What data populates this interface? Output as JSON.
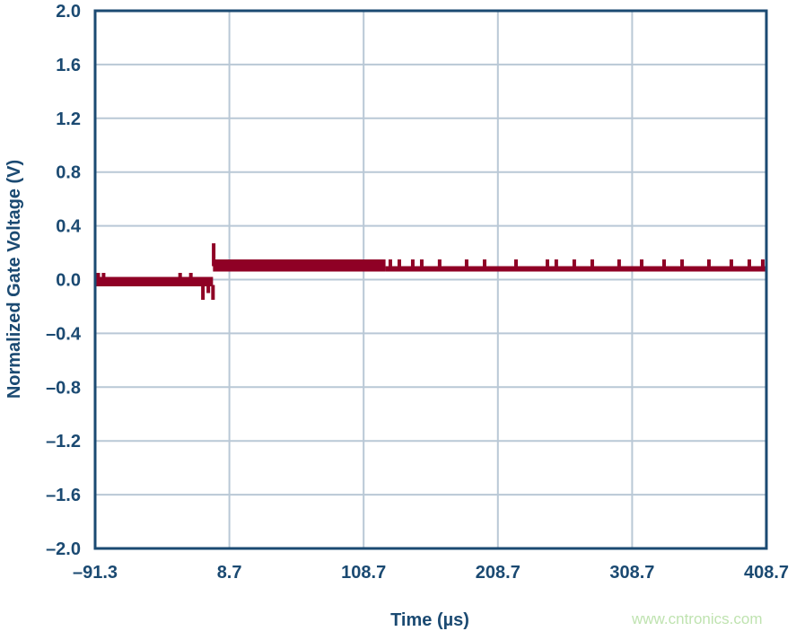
{
  "chart_data": {
    "type": "line",
    "title": "",
    "xlabel": "Time (µs)",
    "ylabel": "Normalized Gate Voltage (V)",
    "xlim": [
      -91.3,
      408.7
    ],
    "ylim": [
      -2.0,
      2.0
    ],
    "xticks": [
      -91.3,
      8.7,
      108.7,
      208.7,
      308.7,
      408.7
    ],
    "xtick_labels": [
      "–91.3",
      "8.7",
      "108.7",
      "208.7",
      "308.7",
      "408.7"
    ],
    "yticks": [
      2.0,
      1.6,
      1.2,
      0.8,
      0.4,
      0.0,
      -0.4,
      -0.8,
      -1.2,
      -1.6,
      -2.0
    ],
    "ytick_labels": [
      "2.0",
      "1.6",
      "1.2",
      "0.8",
      "0.4",
      "0.0",
      "–0.4",
      "–0.8",
      "–1.2",
      "–1.6",
      "–2.0"
    ],
    "grid": true,
    "series_color": "#8f0025",
    "envelope": [
      {
        "t0": -91.3,
        "t1": -3.5,
        "min": -0.05,
        "max": 0.02
      },
      {
        "t0": -3.5,
        "t1": 125,
        "min": 0.06,
        "max": 0.15
      },
      {
        "t0": 125,
        "t1": 408.7,
        "min": 0.06,
        "max": 0.1
      }
    ],
    "spikes": [
      {
        "t": -89,
        "v": 0.05
      },
      {
        "t": -85,
        "v": 0.05
      },
      {
        "t": -28,
        "v": 0.05
      },
      {
        "t": -20,
        "v": 0.05
      },
      {
        "t": -11,
        "v": -0.15
      },
      {
        "t": -7,
        "v": -0.1
      },
      {
        "t": -3.5,
        "v": -0.15
      },
      {
        "t": -3,
        "v": 0.27
      },
      {
        "t": 128.6,
        "v": 0.15
      },
      {
        "t": 135.3,
        "v": 0.15
      },
      {
        "t": 145.3,
        "v": 0.15
      },
      {
        "t": 152.0,
        "v": 0.15
      },
      {
        "t": 165.3,
        "v": 0.15
      },
      {
        "t": 185.4,
        "v": 0.15
      },
      {
        "t": 198.8,
        "v": 0.15
      },
      {
        "t": 222.2,
        "v": 0.15
      },
      {
        "t": 245.6,
        "v": 0.15
      },
      {
        "t": 252.2,
        "v": 0.15
      },
      {
        "t": 265.6,
        "v": 0.15
      },
      {
        "t": 279.0,
        "v": 0.15
      },
      {
        "t": 299.0,
        "v": 0.15
      },
      {
        "t": 315.8,
        "v": 0.15
      },
      {
        "t": 332.5,
        "v": 0.15
      },
      {
        "t": 345.9,
        "v": 0.15
      },
      {
        "t": 365.9,
        "v": 0.15
      },
      {
        "t": 382.6,
        "v": 0.15
      },
      {
        "t": 396.0,
        "v": 0.15
      },
      {
        "t": 406.0,
        "v": 0.15
      }
    ]
  },
  "watermark": "www.cntronics.com"
}
